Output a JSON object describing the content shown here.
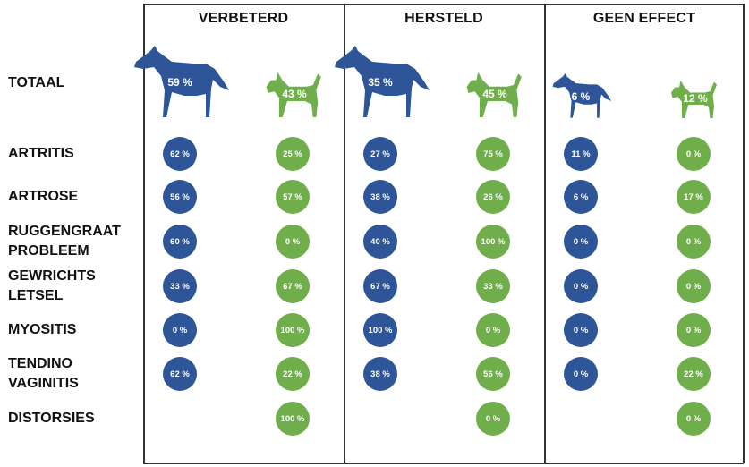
{
  "colors": {
    "horse": "#2e5597",
    "dog": "#6fae4a",
    "grid": "#333333",
    "text": "#111111"
  },
  "chart_data": {
    "type": "table",
    "columns": [
      "VERBETERD",
      "HERSTELD",
      "GEEN EFFECT"
    ],
    "series": [
      {
        "icon": "horse-icon",
        "color": "#2e5597"
      },
      {
        "icon": "dog-icon",
        "color": "#6fae4a"
      }
    ],
    "totals": {
      "label": "TOTAAL",
      "values": [
        [
          "59 %",
          "43 %"
        ],
        [
          "35 %",
          "45 %"
        ],
        [
          "6 %",
          "12 %"
        ]
      ]
    },
    "rows": [
      {
        "label": "ARTRITIS",
        "values": [
          [
            "62 %",
            "25 %"
          ],
          [
            "27 %",
            "75 %"
          ],
          [
            "11 %",
            "0 %"
          ]
        ]
      },
      {
        "label": "ARTROSE",
        "values": [
          [
            "56 %",
            "57 %"
          ],
          [
            "38 %",
            "26 %"
          ],
          [
            "6 %",
            "17 %"
          ]
        ]
      },
      {
        "label": "RUGGENGRAAT\nPROBLEEM",
        "values": [
          [
            "60 %",
            "0 %"
          ],
          [
            "40 %",
            "100 %"
          ],
          [
            "0 %",
            "0 %"
          ]
        ]
      },
      {
        "label": "GEWRICHTS\nLETSEL",
        "values": [
          [
            "33 %",
            "67 %"
          ],
          [
            "67 %",
            "33 %"
          ],
          [
            "0 %",
            "0 %"
          ]
        ]
      },
      {
        "label": "MYOSITIS",
        "values": [
          [
            "0 %",
            "100 %"
          ],
          [
            "100 %",
            "0 %"
          ],
          [
            "0 %",
            "0 %"
          ]
        ]
      },
      {
        "label": "TENDINO\nVAGINITIS",
        "values": [
          [
            "62 %",
            "22 %"
          ],
          [
            "38 %",
            "56 %"
          ],
          [
            "0 %",
            "22 %"
          ]
        ]
      },
      {
        "label": "DISTORSIES",
        "values": [
          [
            null,
            "100 %"
          ],
          [
            null,
            "0 %"
          ],
          [
            null,
            "0 %"
          ]
        ]
      }
    ]
  }
}
